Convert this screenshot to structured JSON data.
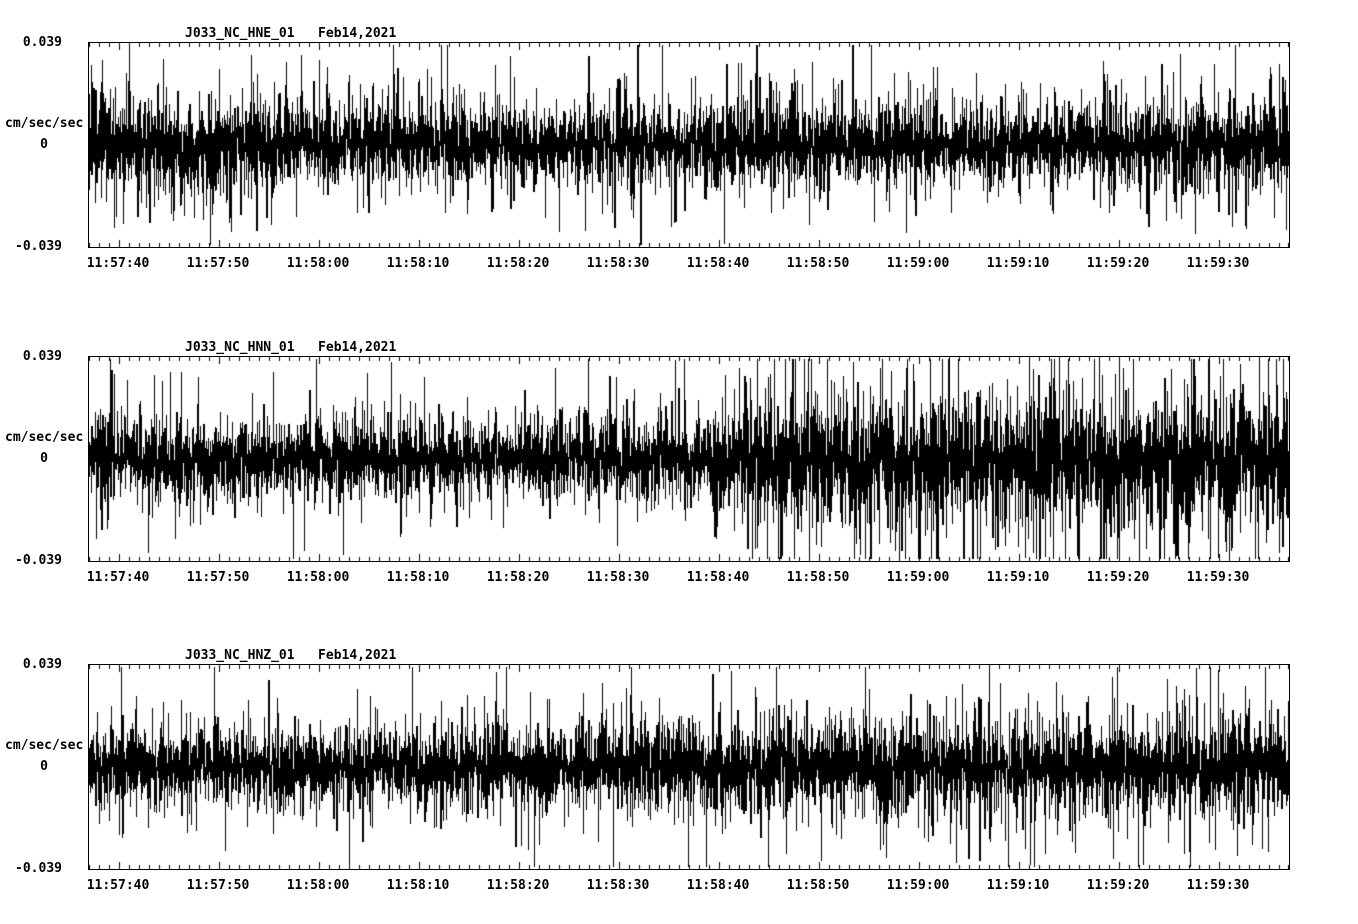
{
  "page": {
    "background_color": "#ffffff",
    "trace_color": "#000000"
  },
  "chart_data": [
    {
      "type": "line",
      "chart_kind": "seismogram-accelerogram",
      "title": "J033_NC_HNE_01   Feb14,2021",
      "ylabel": "cm/sec/sec",
      "y_ticks": [
        "0.039",
        "0",
        "-0.039"
      ],
      "ylim": [
        -0.039,
        0.039
      ],
      "x_axis": {
        "start": "11:57:37",
        "end": "11:59:37",
        "major_tick_sec": 10,
        "minor_tick_sec": 1
      },
      "x_tick_labels": [
        "11:57:40",
        "11:57:50",
        "11:58:00",
        "11:58:10",
        "11:58:20",
        "11:58:30",
        "11:58:40",
        "11:58:50",
        "11:59:00",
        "11:59:10",
        "11:59:20",
        "11:59:30"
      ],
      "amplitude_envelope": {
        "unit": "fraction of full scale 0.039 cm/sec/sec",
        "points": [
          [
            0,
            0.42
          ],
          [
            15,
            0.4
          ],
          [
            30,
            0.38
          ],
          [
            45,
            0.36
          ],
          [
            60,
            0.38
          ],
          [
            75,
            0.36
          ],
          [
            90,
            0.36
          ],
          [
            105,
            0.38
          ],
          [
            120,
            0.4
          ]
        ]
      }
    },
    {
      "type": "line",
      "chart_kind": "seismogram-accelerogram",
      "title": "J033_NC_HNN_01   Feb14,2021",
      "ylabel": "cm/sec/sec",
      "y_ticks": [
        "0.039",
        "0",
        "-0.039"
      ],
      "ylim": [
        -0.039,
        0.039
      ],
      "x_axis": {
        "start": "11:57:37",
        "end": "11:59:37",
        "major_tick_sec": 10,
        "minor_tick_sec": 1
      },
      "x_tick_labels": [
        "11:57:40",
        "11:57:50",
        "11:58:00",
        "11:58:10",
        "11:58:20",
        "11:58:30",
        "11:58:40",
        "11:58:50",
        "11:59:00",
        "11:59:10",
        "11:59:20",
        "11:59:30"
      ],
      "amplitude_envelope": {
        "unit": "fraction of full scale 0.039 cm/sec/sec",
        "points": [
          [
            0,
            0.36
          ],
          [
            20,
            0.36
          ],
          [
            40,
            0.34
          ],
          [
            55,
            0.36
          ],
          [
            62,
            0.4
          ],
          [
            66,
            0.58
          ],
          [
            75,
            0.62
          ],
          [
            90,
            0.6
          ],
          [
            105,
            0.62
          ],
          [
            120,
            0.62
          ]
        ]
      }
    },
    {
      "type": "line",
      "chart_kind": "seismogram-accelerogram",
      "title": "J033_NC_HNZ_01   Feb14,2021",
      "ylabel": "cm/sec/sec",
      "y_ticks": [
        "0.039",
        "0",
        "-0.039"
      ],
      "ylim": [
        -0.039,
        0.039
      ],
      "x_axis": {
        "start": "11:57:37",
        "end": "11:59:37",
        "major_tick_sec": 10,
        "minor_tick_sec": 1
      },
      "x_tick_labels": [
        "11:57:40",
        "11:57:50",
        "11:58:00",
        "11:58:10",
        "11:58:20",
        "11:58:30",
        "11:58:40",
        "11:58:50",
        "11:59:00",
        "11:59:10",
        "11:59:20",
        "11:59:30"
      ],
      "amplitude_envelope": {
        "unit": "fraction of full scale 0.039 cm/sec/sec",
        "points": [
          [
            0,
            0.34
          ],
          [
            20,
            0.34
          ],
          [
            40,
            0.36
          ],
          [
            60,
            0.38
          ],
          [
            75,
            0.42
          ],
          [
            90,
            0.44
          ],
          [
            105,
            0.42
          ],
          [
            120,
            0.44
          ]
        ]
      }
    }
  ]
}
